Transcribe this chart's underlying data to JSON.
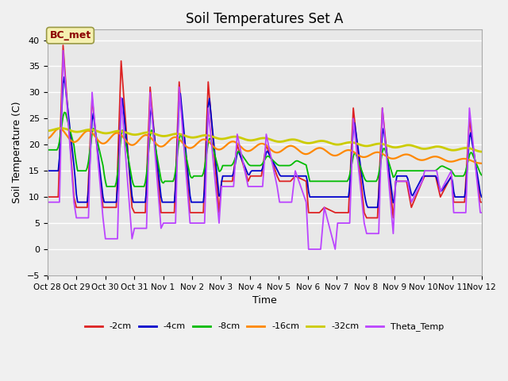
{
  "title": "Soil Temperatures Set A",
  "xlabel": "Time",
  "ylabel": "Soil Temperature (C)",
  "ylim": [
    -5,
    42
  ],
  "fig_bg": "#f0f0f0",
  "ax_bg": "#e8e8e8",
  "annotation_text": "BC_met",
  "annotation_fg": "#8B0000",
  "annotation_bg": "#f5f0b0",
  "annotation_edge": "#999944",
  "x_tick_labels": [
    "Oct 28",
    "Oct 29",
    "Oct 30",
    "Oct 31",
    "Nov 1",
    "Nov 2",
    "Nov 3",
    "Nov 4",
    "Nov 5",
    "Nov 6",
    "Nov 7",
    "Nov 8",
    "Nov 9",
    "Nov 10",
    "Nov 11",
    "Nov 12"
  ],
  "yticks": [
    -5,
    0,
    5,
    10,
    15,
    20,
    25,
    30,
    35,
    40
  ],
  "colors": {
    "-2cm": "#dd2222",
    "-4cm": "#0000cc",
    "-8cm": "#00bb00",
    "-16cm": "#ff8800",
    "-32cm": "#cccc00",
    "Theta_Temp": "#bb44ff"
  },
  "legend_order": [
    "-2cm",
    "-4cm",
    "-8cm",
    "-16cm",
    "-32cm",
    "Theta_Temp"
  ]
}
